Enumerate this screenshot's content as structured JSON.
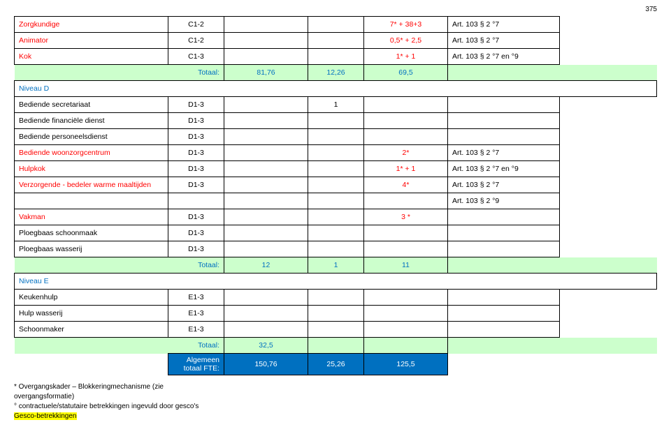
{
  "page_number": "375",
  "table": {
    "rows": [
      {
        "c1": "Zorgkundige",
        "c2": "C1-2",
        "c5": "7* + 38+3",
        "c6": "Art. 103 § 2 °7",
        "color": "red"
      },
      {
        "c1": "Animator",
        "c2": "C1-2",
        "c5": "0,5* + 2,5",
        "c6": "Art. 103 § 2 °7",
        "color": "red"
      },
      {
        "c1": "Kok",
        "c2": "C1-3",
        "c5": "1* + 1",
        "c6": "Art. 103 § 2 °7 en °9",
        "color": "red"
      }
    ],
    "total1": {
      "label": "Totaal:",
      "v3": "81,76",
      "v4": "12,26",
      "v5": "69,5"
    },
    "niveau_d": "Niveau D",
    "rows_d": [
      {
        "c1": "Bediende secretariaat",
        "c2": "D1-3",
        "c4": "1"
      },
      {
        "c1": "Bediende financiële dienst",
        "c2": "D1-3"
      },
      {
        "c1": "Bediende personeelsdienst",
        "c2": "D1-3"
      },
      {
        "c1": "Bediende woonzorgcentrum",
        "c2": "D1-3",
        "c5": "2*",
        "c6": "Art. 103 § 2 °7",
        "color": "red"
      },
      {
        "c1": "Hulpkok",
        "c2": "D1-3",
        "c5": "1* + 1",
        "c6": "Art. 103 § 2 °7 en °9",
        "color": "red"
      },
      {
        "c1": "Verzorgende - bedeler warme maaltijden",
        "c2": "D1-3",
        "c5": "4*",
        "c6": "Art. 103 § 2 °7",
        "color": "red"
      },
      {
        "c1": "",
        "c6": "Art. 103 § 2 °9",
        "blank": true
      },
      {
        "c1": "Vakman",
        "c2": "D1-3",
        "c5": "3 *",
        "color": "red"
      },
      {
        "c1": "Ploegbaas schoonmaak",
        "c2": "D1-3"
      },
      {
        "c1": "Ploegbaas wasserij",
        "c2": "D1-3"
      }
    ],
    "total2": {
      "label": "Totaal:",
      "v3": "12",
      "v4": "1",
      "v5": "11"
    },
    "niveau_e": "Niveau E",
    "rows_e": [
      {
        "c1": "Keukenhulp",
        "c2": "E1-3"
      },
      {
        "c1": "Hulp wasserij",
        "c2": "E1-3"
      },
      {
        "c1": "Schoonmaker",
        "c2": "E1-3"
      }
    ],
    "total3": {
      "label": "Totaal:",
      "v3": "32,5"
    },
    "grand": {
      "label": "Algemeen totaal FTE:",
      "v3": "150,76",
      "v4": "25,26",
      "v5": "125,5"
    }
  },
  "notes": {
    "n1": "* Overgangskader – Blokkeringmechanisme (zie overgangsformatie)",
    "n2": "° contractuele/statutaire betrekkingen ingevuld door gesco's",
    "n3": "Gesco-betrekkingen"
  }
}
